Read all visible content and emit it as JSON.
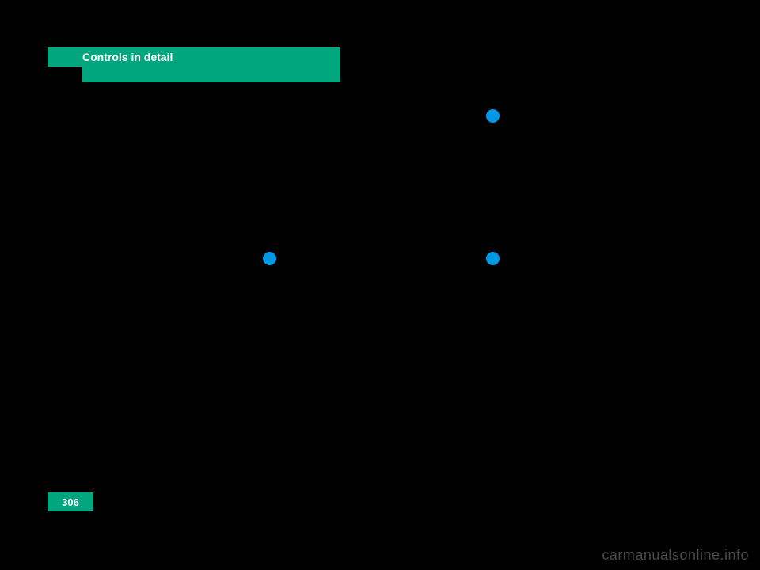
{
  "header": {
    "title": "Controls in detail"
  },
  "page": {
    "number": "306"
  },
  "watermark": {
    "text": "carmanualsonline.info"
  },
  "bullets": {
    "b1": "",
    "b2": "",
    "b3": ""
  },
  "colors": {
    "background": "#000000",
    "accent": "#00a67d",
    "bullet": "#0099e6",
    "watermark": "#4a4a4a",
    "header_text": "#ffffff"
  }
}
